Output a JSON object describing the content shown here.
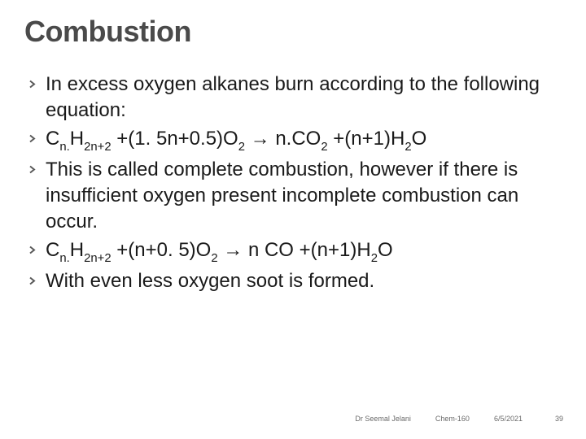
{
  "title": {
    "text": "Combustion",
    "fontsize": 36,
    "color": "#4a4a4a"
  },
  "bullets": {
    "fontsize": 24,
    "color": "#1a1a1a",
    "items": [
      {
        "html": "In excess oxygen alkanes burn according to the following equation:"
      },
      {
        "html": "C<span class='sub'>n.</span>H<span class='sub'>2n+2</span> +(1. 5n+0.5)O<span class='sub'>2</span> → n.CO<span class='sub'>2</span> +(n+1)H<span class='sub'>2</span>O"
      },
      {
        "html": "This is called complete combustion, however if there is insufficient oxygen present incomplete combustion can occur."
      },
      {
        "html": "C<span class='sub'>n.</span>H<span class='sub'>2n+2</span> +(n+0. 5)O<span class='sub'>2</span> → n CO +(n+1)H<span class='sub'>2</span>O"
      },
      {
        "html": "With even less oxygen soot is formed."
      }
    ]
  },
  "footer": {
    "author": "Dr Seemal Jelani",
    "course": "Chem-160",
    "date": "6/5/2021",
    "page": "39",
    "fontsize": 9,
    "color": "#6a6a6a"
  },
  "decor": {
    "tri_outer": "#dc6b2f",
    "tri_mid": "#b23c1a",
    "tri_inner": "#f7f3e8"
  }
}
